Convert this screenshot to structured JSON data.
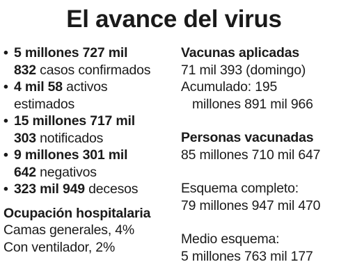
{
  "title": "El avance del virus",
  "stats": [
    {
      "bold_1": "5 millones 727 mil",
      "bold_2": "832",
      "text": " casos confirmados"
    },
    {
      "bold_1": "4 mil 58",
      "text_1": " activos",
      "text_2": "estimados"
    },
    {
      "bold_1": "15 millones 717 mil",
      "bold_2": "303",
      "text": " notificados"
    },
    {
      "bold_1": "9 millones 301 mil",
      "bold_2": "642",
      "text": " negativos"
    },
    {
      "bold_1": "323 mil 949",
      "text": " decesos"
    }
  ],
  "hospital": {
    "heading": "Ocupación hospitalaria",
    "general_beds": "Camas generales, 4%",
    "ventilator": "Con ventilador, 2%"
  },
  "vaccines": {
    "heading": "Vacunas aplicadas",
    "daily": "71 mil 393 (domingo)",
    "accumulated_1": "Acumulado: 195",
    "accumulated_2": "millones 891 mil 966"
  },
  "vaccinated": {
    "heading": "Personas vacunadas",
    "total": "85 millones 710 mil 647",
    "complete_label": "Esquema completo:",
    "complete_value": "79 millones 947 mil 470",
    "half_label": "Medio esquema:",
    "half_value": "5 millones 763 mil 177"
  }
}
